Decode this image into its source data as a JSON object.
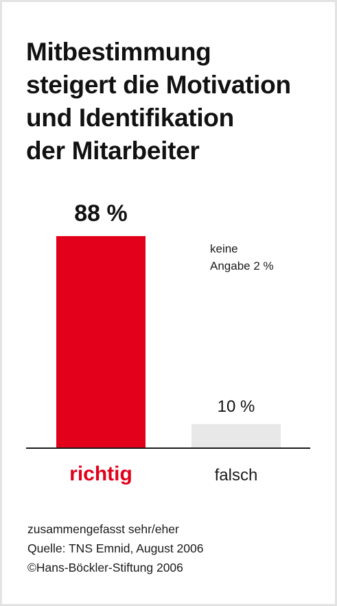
{
  "title_lines": [
    "Mitbestimmung",
    "steigert die Motivation",
    "und Identifikation",
    "der Mitarbeiter"
  ],
  "chart_data": {
    "type": "bar",
    "categories": [
      "richtig",
      "falsch"
    ],
    "values": [
      88,
      10
    ],
    "value_labels": [
      "88 %",
      "10 %"
    ],
    "colors": [
      "#e2001a",
      "#e8e8e8"
    ],
    "category_label_colors": [
      "#e2001a",
      "#1a1a1a"
    ],
    "ylim": [
      0,
      90
    ],
    "annotation": {
      "lines": [
        "keine",
        "Angabe 2 %"
      ],
      "value": 2
    },
    "xlabel": "",
    "ylabel": "",
    "grid": false
  },
  "footer": {
    "note": "zusammengefasst sehr/eher",
    "source": "Quelle: TNS Emnid, August 2006",
    "copyright": "©Hans-Böckler-Stiftung 2006"
  }
}
